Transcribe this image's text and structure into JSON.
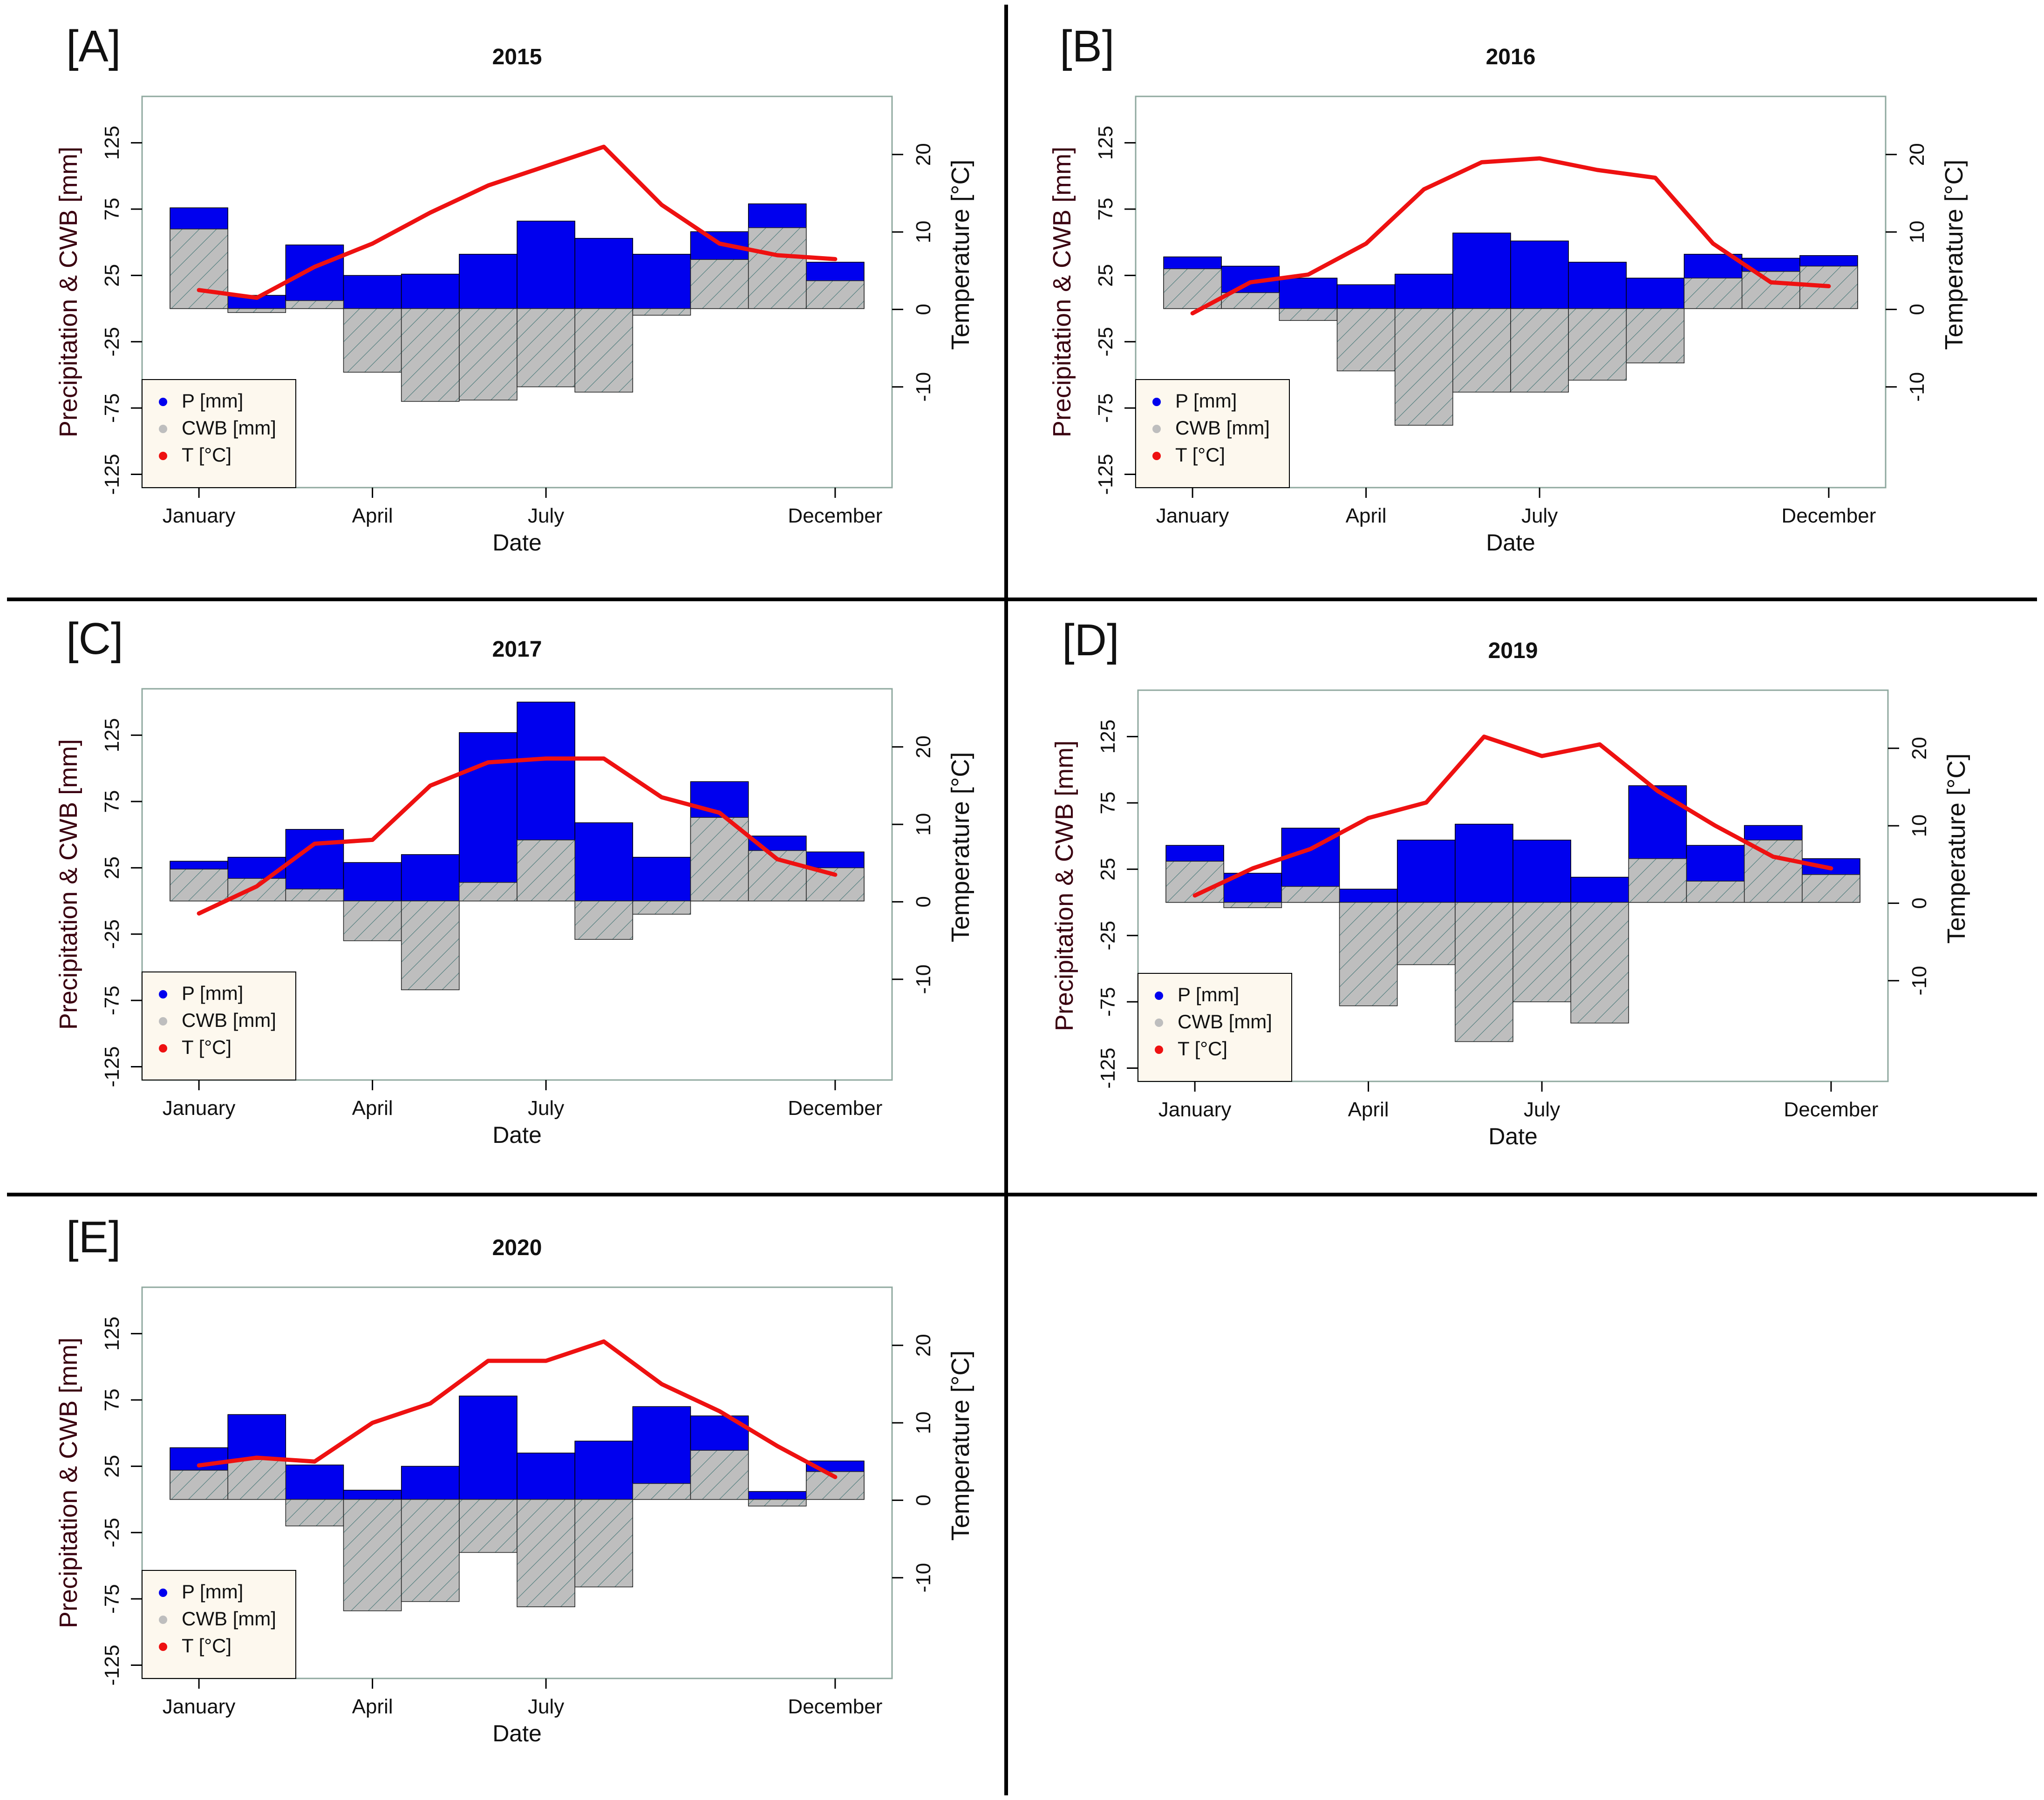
{
  "figure": {
    "colors": {
      "precip": "#0000ee",
      "cwb_fill": "#bebebe",
      "cwb_hatch": "#4a7a7a",
      "temp": "#ee1111",
      "legend_bg": "#fdf8ee",
      "frame": "#8fa89f",
      "divider": "#000000"
    }
  },
  "chart_data": [
    {
      "type": "bar",
      "panel_label": "[A]",
      "title": "2015",
      "xlabel": "Date",
      "ylabel": "Precipitation & CWB [mm]",
      "y2label": "Temperature [°C]",
      "ylim": [
        -135,
        160
      ],
      "y2lim": [
        -23,
        27.5
      ],
      "yticks": [
        "125",
        "75",
        "25",
        "-25",
        "-75",
        "-125"
      ],
      "y2ticks": [
        "20",
        "10",
        "0",
        "-10"
      ],
      "xtick_labels": [
        "January",
        "April",
        "July",
        "December"
      ],
      "xtick_months": [
        1,
        4,
        7,
        12
      ],
      "legend": [
        "P [mm]",
        "CWB [mm]",
        "T [°C]"
      ],
      "categories": [
        "Jan",
        "Feb",
        "Mar",
        "Apr",
        "May",
        "Jun",
        "Jul",
        "Aug",
        "Sep",
        "Oct",
        "Nov",
        "Dec"
      ],
      "series": [
        {
          "name": "P [mm]",
          "values": [
            76,
            10,
            48,
            25,
            26,
            41,
            66,
            53,
            41,
            58,
            79,
            35
          ]
        },
        {
          "name": "CWB [mm]",
          "values": [
            60,
            -3,
            6,
            -48,
            -70,
            -69,
            -59,
            -63,
            -5,
            37,
            61,
            21
          ]
        },
        {
          "name": "T [°C]",
          "values": [
            2.5,
            1.5,
            5.5,
            8.5,
            12.5,
            16,
            18.5,
            21,
            13.5,
            8.5,
            7,
            6.5
          ]
        }
      ]
    },
    {
      "type": "bar",
      "panel_label": "[B]",
      "title": "2016",
      "xlabel": "Date",
      "ylabel": "Precipitation & CWB [mm]",
      "y2label": "Temperature [°C]",
      "ylim": [
        -135,
        160
      ],
      "y2lim": [
        -23,
        27.5
      ],
      "yticks": [
        "125",
        "75",
        "25",
        "-25",
        "-75",
        "-125"
      ],
      "y2ticks": [
        "20",
        "10",
        "0",
        "-10"
      ],
      "xtick_labels": [
        "January",
        "April",
        "July",
        "December"
      ],
      "xtick_months": [
        1,
        4,
        7,
        12
      ],
      "legend": [
        "P [mm]",
        "CWB [mm]",
        "T [°C]"
      ],
      "categories": [
        "Jan",
        "Feb",
        "Mar",
        "Apr",
        "May",
        "Jun",
        "Jul",
        "Aug",
        "Sep",
        "Oct",
        "Nov",
        "Dec"
      ],
      "series": [
        {
          "name": "P [mm]",
          "values": [
            39,
            32,
            23,
            18,
            26,
            57,
            51,
            35,
            23,
            41,
            38,
            40
          ]
        },
        {
          "name": "CWB [mm]",
          "values": [
            30,
            12,
            -9,
            -47,
            -88,
            -63,
            -63,
            -54,
            -41,
            23,
            28,
            32
          ]
        },
        {
          "name": "T [°C]",
          "values": [
            -0.5,
            3.5,
            4.5,
            8.5,
            15.5,
            19,
            19.5,
            18,
            17,
            8.5,
            3.5,
            3
          ]
        }
      ]
    },
    {
      "type": "bar",
      "panel_label": "[C]",
      "title": "2017",
      "xlabel": "Date",
      "ylabel": "Precipitation & CWB [mm]",
      "y2label": "Temperature [°C]",
      "ylim": [
        -135,
        160
      ],
      "y2lim": [
        -23,
        27.5
      ],
      "yticks": [
        "125",
        "75",
        "25",
        "-25",
        "-75",
        "-125"
      ],
      "y2ticks": [
        "20",
        "10",
        "0",
        "-10"
      ],
      "xtick_labels": [
        "January",
        "April",
        "July",
        "December"
      ],
      "xtick_months": [
        1,
        4,
        7,
        12
      ],
      "legend": [
        "P [mm]",
        "CWB [mm]",
        "T [°C]"
      ],
      "categories": [
        "Jan",
        "Feb",
        "Mar",
        "Apr",
        "May",
        "Jun",
        "Jul",
        "Aug",
        "Sep",
        "Oct",
        "Nov",
        "Dec"
      ],
      "series": [
        {
          "name": "P [mm]",
          "values": [
            30,
            33,
            54,
            29,
            35,
            127,
            150,
            59,
            33,
            90,
            49,
            37
          ]
        },
        {
          "name": "CWB [mm]",
          "values": [
            24,
            17,
            9,
            -30,
            -67,
            14,
            46,
            -29,
            -10,
            63,
            38,
            25
          ]
        },
        {
          "name": "T [°C]",
          "values": [
            -1.5,
            2,
            7.5,
            8,
            15,
            18,
            18.5,
            18.5,
            13.5,
            11.5,
            5.5,
            3.5
          ]
        }
      ]
    },
    {
      "type": "bar",
      "panel_label": "[D]",
      "title": "2019",
      "xlabel": "Date",
      "ylabel": "Precipitation & CWB [mm]",
      "y2label": "Temperature [°C]",
      "ylim": [
        -135,
        160
      ],
      "y2lim": [
        -23,
        27.5
      ],
      "yticks": [
        "125",
        "75",
        "25",
        "-25",
        "-75",
        "-125"
      ],
      "y2ticks": [
        "20",
        "10",
        "0",
        "-10"
      ],
      "xtick_labels": [
        "January",
        "April",
        "July",
        "December"
      ],
      "xtick_months": [
        1,
        4,
        7,
        12
      ],
      "legend": [
        "P [mm]",
        "CWB [mm]",
        "T [°C]"
      ],
      "categories": [
        "Jan",
        "Feb",
        "Mar",
        "Apr",
        "May",
        "Jun",
        "Jul",
        "Aug",
        "Sep",
        "Oct",
        "Nov",
        "Dec"
      ],
      "series": [
        {
          "name": "P [mm]",
          "values": [
            43,
            22,
            56,
            10,
            47,
            59,
            47,
            19,
            88,
            43,
            58,
            33
          ]
        },
        {
          "name": "CWB [mm]",
          "values": [
            31,
            -4,
            12,
            -78,
            -47,
            -105,
            -75,
            -91,
            33,
            16,
            47,
            21
          ]
        },
        {
          "name": "T [°C]",
          "values": [
            1,
            4.5,
            7,
            11,
            13,
            21.5,
            19,
            20.5,
            14.5,
            10,
            6,
            4.5
          ]
        }
      ]
    },
    {
      "type": "bar",
      "panel_label": "[E]",
      "title": "2020",
      "xlabel": "Date",
      "ylabel": "Precipitation & CWB [mm]",
      "y2label": "Temperature [°C]",
      "ylim": [
        -135,
        160
      ],
      "y2lim": [
        -23,
        27.5
      ],
      "yticks": [
        "125",
        "75",
        "25",
        "-25",
        "-75",
        "-125"
      ],
      "y2ticks": [
        "20",
        "10",
        "0",
        "-10"
      ],
      "xtick_labels": [
        "January",
        "April",
        "July",
        "December"
      ],
      "xtick_months": [
        1,
        4,
        7,
        12
      ],
      "legend": [
        "P [mm]",
        "CWB [mm]",
        "T [°C]"
      ],
      "categories": [
        "Jan",
        "Feb",
        "Mar",
        "Apr",
        "May",
        "Jun",
        "Jul",
        "Aug",
        "Sep",
        "Oct",
        "Nov",
        "Dec"
      ],
      "series": [
        {
          "name": "P [mm]",
          "values": [
            39,
            64,
            26,
            7,
            25,
            78,
            35,
            44,
            70,
            63,
            6,
            29
          ]
        },
        {
          "name": "CWB [mm]",
          "values": [
            22,
            30,
            -20,
            -84,
            -77,
            -40,
            -81,
            -66,
            12,
            37,
            -5,
            21
          ]
        },
        {
          "name": "T [°C]",
          "values": [
            4.5,
            5.5,
            5,
            10,
            12.5,
            18,
            18,
            20.5,
            15,
            11.5,
            7,
            3
          ]
        }
      ]
    }
  ]
}
